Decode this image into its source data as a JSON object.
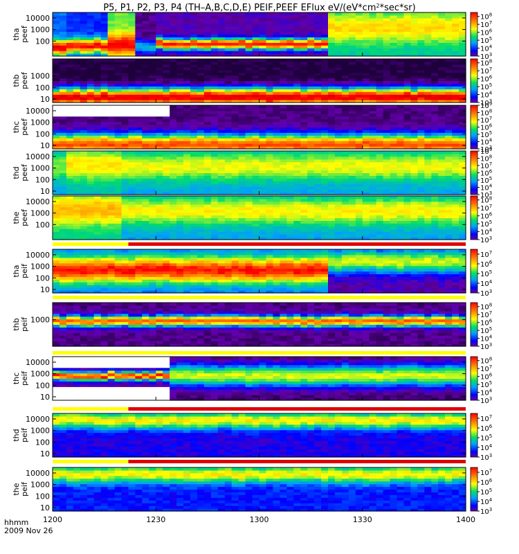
{
  "chart_data": {
    "type": "heatmap",
    "title": "P5, P1, P2, P3, P4 (TH-A,B,C,D,E) PEIF,PEEF EFlux eV/(eV*cm^2*sec*sr)",
    "title_parts": [
      "P5, P1, P2, P3, P4 (TH–A,B,C,D,E) PEIF,PEEF EFlux eV/(eV*cm",
      "2",
      "*sec*sr)"
    ],
    "x_axis": {
      "label_line1": "hhmm",
      "label_line2": "2009 Nov 26",
      "start": "12:00",
      "end": "14:00",
      "range_minutes": [
        0,
        120
      ],
      "ticks": [
        {
          "minute": 0,
          "label": "1200"
        },
        {
          "minute": 30,
          "label": "1230"
        },
        {
          "minute": 60,
          "label": "1300"
        },
        {
          "minute": 90,
          "label": "1330"
        },
        {
          "minute": 120,
          "label": "1400"
        }
      ]
    },
    "y_scale": "log",
    "colorbar_scale": "log",
    "panels": [
      {
        "probe": "tha",
        "product": "peef",
        "ylabel1": "tha",
        "ylabel2": "peef",
        "ylim_eV": [
          5,
          30000
        ],
        "yticks": [
          "10000",
          "1000",
          "100"
        ],
        "ytick_values": [
          10000,
          1000,
          100
        ],
        "colorbar_ticks": [
          {
            "exp": 3
          },
          {
            "exp": 4
          },
          {
            "exp": 5
          },
          {
            "exp": 6
          },
          {
            "exp": 7
          },
          {
            "exp": 8
          }
        ],
        "colorbar_range_exp": [
          3,
          8.5
        ],
        "segments": [
          {
            "t": [
              0,
              5
            ],
            "peak_eV": 30,
            "peak_exp": 8.3,
            "width": 0.6,
            "floor_exp": 4.5
          },
          {
            "t": [
              5,
              16
            ],
            "peak_eV": 40,
            "peak_exp": 8.0,
            "width": 0.6,
            "floor_exp": 4.2
          },
          {
            "t": [
              16,
              25
            ],
            "peak_eV": 50,
            "peak_exp": 8.0,
            "width": 0.9,
            "floor_exp": 5.8
          },
          {
            "t": [
              25,
              30
            ],
            "peak_eV": 30,
            "peak_exp": 5.0,
            "width": 0.6,
            "floor_exp": 3.3
          },
          {
            "t": [
              30,
              80
            ],
            "peak_eV": 60,
            "peak_exp": 7.9,
            "width": 0.45,
            "floor_exp": 3.5
          },
          {
            "t": [
              80,
              120
            ],
            "peak_eV": 1500,
            "peak_exp": 6.6,
            "width": 1.3,
            "floor_exp": 5.2
          }
        ]
      },
      {
        "probe": "thb",
        "product": "peef",
        "ylabel1": "thb",
        "ylabel2": "peef",
        "ylim_eV": [
          5,
          30000
        ],
        "yticks": [
          "1000",
          "100",
          "10"
        ],
        "ytick_values": [
          1000,
          100,
          10
        ],
        "colorbar_ticks": [
          {
            "exp": 3
          },
          {
            "exp": 4
          },
          {
            "exp": 5
          },
          {
            "exp": 6
          },
          {
            "exp": 7
          },
          {
            "exp": 8
          }
        ],
        "colorbar_range_exp": [
          3,
          8.5
        ],
        "segments": [
          {
            "t": [
              0,
              120
            ],
            "peak_eV": 15,
            "peak_exp": 8.2,
            "width": 0.8,
            "floor_exp": 3.0
          }
        ]
      },
      {
        "probe": "thc",
        "product": "peef",
        "ylabel1": "thc",
        "ylabel2": "peef",
        "ylim_eV": [
          5,
          30000
        ],
        "yticks": [
          "10000",
          "1000",
          "100",
          "10"
        ],
        "ytick_values": [
          10000,
          1000,
          100,
          10
        ],
        "colorbar_ticks": [
          {
            "exp": 3
          },
          {
            "exp": 4
          },
          {
            "exp": 5
          },
          {
            "exp": 6
          },
          {
            "exp": 7
          },
          {
            "exp": 8
          },
          {
            "exp": 9
          }
        ],
        "colorbar_range_exp": [
          3,
          9
        ],
        "gap": {
          "t": [
            0,
            35
          ],
          "eV": [
            3000,
            30000
          ]
        },
        "segments": [
          {
            "t": [
              0,
              120
            ],
            "peak_eV": 12,
            "peak_exp": 8.0,
            "width": 0.9,
            "floor_exp": 3.3
          }
        ]
      },
      {
        "probe": "thd",
        "product": "peef",
        "ylabel1": "thd",
        "ylabel2": "peef",
        "ylim_eV": [
          5,
          30000
        ],
        "yticks": [
          "10000",
          "1000",
          "100",
          "10"
        ],
        "ytick_values": [
          10000,
          1000,
          100,
          10
        ],
        "colorbar_ticks": [
          {
            "exp": 3
          },
          {
            "exp": 4
          },
          {
            "exp": 5
          },
          {
            "exp": 6
          },
          {
            "exp": 7
          },
          {
            "exp": 8
          },
          {
            "exp": 9
          }
        ],
        "colorbar_range_exp": [
          3,
          9
        ],
        "segments": [
          {
            "t": [
              0,
              5
            ],
            "peak_eV": 1500,
            "peak_exp": 6.2,
            "width": 1.2,
            "floor_exp": 5.0
          },
          {
            "t": [
              5,
              20
            ],
            "peak_eV": 2000,
            "peak_exp": 6.8,
            "width": 1.3,
            "floor_exp": 5.3
          },
          {
            "t": [
              20,
              120
            ],
            "peak_eV": 1500,
            "peak_exp": 6.6,
            "width": 1.2,
            "floor_exp": 5.0
          }
        ]
      },
      {
        "probe": "the",
        "product": "peef",
        "ylabel1": "the",
        "ylabel2": "peef",
        "ylim_eV": [
          5,
          30000
        ],
        "yticks": [
          "10000",
          "1000",
          "100"
        ],
        "ytick_values": [
          10000,
          1000,
          100
        ],
        "colorbar_ticks": [
          {
            "exp": 3
          },
          {
            "exp": 4
          },
          {
            "exp": 5
          },
          {
            "exp": 6
          },
          {
            "exp": 7
          },
          {
            "exp": 8
          }
        ],
        "colorbar_range_exp": [
          3,
          8.5
        ],
        "segments": [
          {
            "t": [
              0,
              20
            ],
            "peak_eV": 2000,
            "peak_exp": 6.9,
            "width": 1.3,
            "floor_exp": 5.3
          },
          {
            "t": [
              20,
              120
            ],
            "peak_eV": 1500,
            "peak_exp": 6.4,
            "width": 1.2,
            "floor_exp": 4.8
          }
        ]
      },
      {
        "probe": "tha",
        "product": "peif",
        "ylabel1": "tha",
        "ylabel2": "peif",
        "ylim_eV": [
          5,
          30000
        ],
        "yticks": [
          "10000",
          "1000",
          "100",
          "10"
        ],
        "ytick_values": [
          10000,
          1000,
          100,
          10
        ],
        "colorbar_ticks": [
          {
            "exp": 3
          },
          {
            "exp": 4
          },
          {
            "exp": 5
          },
          {
            "exp": 6
          },
          {
            "exp": 7
          }
        ],
        "colorbar_range_exp": [
          3,
          7.5
        ],
        "segments": [
          {
            "t": [
              0,
              80
            ],
            "peak_eV": 500,
            "peak_exp": 7.0,
            "width": 1.1,
            "floor_exp": 4.2
          },
          {
            "t": [
              80,
              120
            ],
            "peak_eV": 3000,
            "peak_exp": 5.6,
            "width": 1.0,
            "floor_exp": 3.4
          }
        ]
      },
      {
        "probe": "thb",
        "product": "peif",
        "ylabel1": "thb",
        "ylabel2": "peif",
        "ylim_eV": [
          5,
          30000
        ],
        "yticks": [
          "1000"
        ],
        "ytick_values": [
          1000
        ],
        "colorbar_ticks": [
          {
            "exp": 3
          },
          {
            "exp": 4
          },
          {
            "exp": 5
          },
          {
            "exp": 6
          },
          {
            "exp": 7
          },
          {
            "exp": 8
          }
        ],
        "colorbar_range_exp": [
          3,
          8.5
        ],
        "segments": [
          {
            "t": [
              0,
              120
            ],
            "peak_eV": 800,
            "peak_exp": 7.5,
            "width": 0.45,
            "floor_exp": 3.3
          }
        ]
      },
      {
        "probe": "thc",
        "product": "peif",
        "ylabel1": "thc",
        "ylabel2": "peif",
        "ylim_eV": [
          5,
          30000
        ],
        "yticks": [
          "10000",
          "1000",
          "100",
          "10"
        ],
        "ytick_values": [
          10000,
          1000,
          100,
          10
        ],
        "colorbar_ticks": [
          {
            "exp": 3
          },
          {
            "exp": 4
          },
          {
            "exp": 5
          },
          {
            "exp": 6
          },
          {
            "exp": 7
          },
          {
            "exp": 8
          }
        ],
        "colorbar_range_exp": [
          3,
          8.5
        ],
        "gap": {
          "t": [
            0,
            35
          ],
          "eV": [
            3000,
            30000
          ]
        },
        "gap2": {
          "t": [
            0,
            35
          ],
          "eV": [
            5,
            80
          ]
        },
        "segments": [
          {
            "t": [
              0,
              35
            ],
            "peak_eV": 700,
            "peak_exp": 7.8,
            "width": 0.35,
            "floor_exp": 3.5
          },
          {
            "t": [
              35,
              120
            ],
            "peak_eV": 700,
            "peak_exp": 6.2,
            "width": 0.9,
            "floor_exp": 3.2
          }
        ]
      },
      {
        "probe": "thd",
        "product": "peif",
        "ylabel1": "thd",
        "ylabel2": "peif",
        "ylim_eV": [
          5,
          30000
        ],
        "yticks": [
          "10000",
          "1000",
          "100",
          "10"
        ],
        "ytick_values": [
          10000,
          1000,
          100,
          10
        ],
        "colorbar_ticks": [
          {
            "exp": 3
          },
          {
            "exp": 4
          },
          {
            "exp": 5
          },
          {
            "exp": 6
          },
          {
            "exp": 7
          }
        ],
        "colorbar_range_exp": [
          3,
          7.5
        ],
        "segments": [
          {
            "t": [
              0,
              120
            ],
            "peak_eV": 8000,
            "peak_exp": 5.8,
            "width": 0.7,
            "floor_exp": 3.7
          }
        ]
      },
      {
        "probe": "the",
        "product": "peif",
        "ylabel1": "the",
        "ylabel2": "peif",
        "ylim_eV": [
          5,
          30000
        ],
        "yticks": [
          "10000",
          "1000",
          "100",
          "10"
        ],
        "ytick_values": [
          10000,
          1000,
          100,
          10
        ],
        "colorbar_ticks": [
          {
            "exp": 3
          },
          {
            "exp": 4
          },
          {
            "exp": 5
          },
          {
            "exp": 6
          },
          {
            "exp": 7
          }
        ],
        "colorbar_range_exp": [
          3,
          7.5
        ],
        "segments": [
          {
            "t": [
              0,
              120
            ],
            "peak_eV": 8000,
            "peak_exp": 5.8,
            "width": 0.7,
            "floor_exp": 3.9
          }
        ]
      }
    ],
    "mode_bars": [
      {
        "after_panel": 4,
        "segments": [
          {
            "t": [
              0,
              22
            ],
            "color": "#ffff00"
          },
          {
            "t": [
              22,
              120
            ],
            "color": "#e00000"
          }
        ]
      },
      {
        "after_panel": 5,
        "segments": [
          {
            "t": [
              0,
              120
            ],
            "color": "#ffff00"
          }
        ]
      },
      {
        "after_panel": 6,
        "segments": [
          {
            "t": [
              0,
              120
            ],
            "color": "#ffff00"
          }
        ]
      },
      {
        "after_panel": 7,
        "segments": [
          {
            "t": [
              0,
              22
            ],
            "color": "#ffff00"
          },
          {
            "t": [
              22,
              120
            ],
            "color": "#e00000"
          }
        ]
      },
      {
        "after_panel": 8,
        "segments": [
          {
            "t": [
              0,
              22
            ],
            "color": "#ffff00"
          },
          {
            "t": [
              22,
              120
            ],
            "color": "#e00000"
          }
        ]
      }
    ]
  }
}
